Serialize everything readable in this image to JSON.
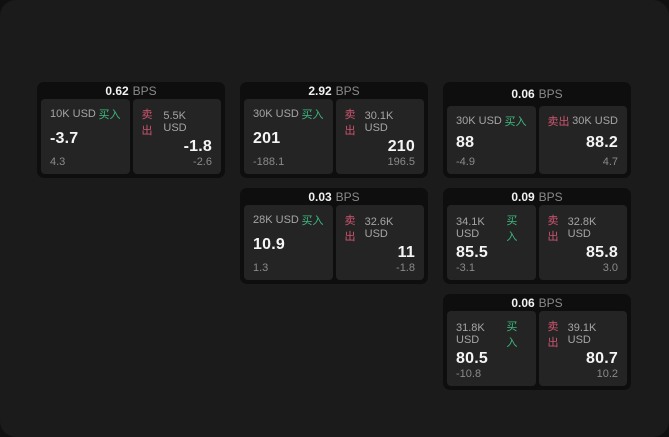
{
  "labels": {
    "bps_unit": "BPS",
    "buy": "买入",
    "sell": "卖出"
  },
  "colors": {
    "buy_green": "#3dba80",
    "sell_red": "#ce5570",
    "card_bg": "#0e0e0e",
    "panel_bg": "#242424",
    "window_bg": "#1b1b1b"
  },
  "cards": [
    {
      "bps": "0.62",
      "col": 0,
      "row": 0,
      "buy": {
        "amount": "10K USD",
        "price": "-3.7",
        "sub": "4.3"
      },
      "sell": {
        "amount": "5.5K USD",
        "price": "-1.8",
        "sub": "-2.6"
      }
    },
    {
      "bps": "2.92",
      "col": 1,
      "row": 0,
      "buy": {
        "amount": "30K USD",
        "price": "201",
        "sub": "-188.1"
      },
      "sell": {
        "amount": "30.1K USD",
        "price": "210",
        "sub": "196.5"
      }
    },
    {
      "bps": "0.06",
      "col": 2,
      "row": 0,
      "buy": {
        "amount": "30K USD",
        "price": "88",
        "sub": "-4.9"
      },
      "sell": {
        "amount": "30K USD",
        "price": "88.2",
        "sub": "4.7"
      }
    },
    {
      "bps": "0.03",
      "col": 1,
      "row": 1,
      "buy": {
        "amount": "28K USD",
        "price": "10.9",
        "sub": "1.3"
      },
      "sell": {
        "amount": "32.6K USD",
        "price": "11",
        "sub": "-1.8"
      }
    },
    {
      "bps": "0.09",
      "col": 2,
      "row": 1,
      "buy": {
        "amount": "34.1K USD",
        "price": "85.5",
        "sub": "-3.1"
      },
      "sell": {
        "amount": "32.8K USD",
        "price": "85.8",
        "sub": "3.0"
      }
    },
    {
      "bps": "0.06",
      "col": 2,
      "row": 2,
      "buy": {
        "amount": "31.8K USD",
        "price": "80.5",
        "sub": "-10.8"
      },
      "sell": {
        "amount": "39.1K USD",
        "price": "80.7",
        "sub": "10.2"
      }
    }
  ]
}
